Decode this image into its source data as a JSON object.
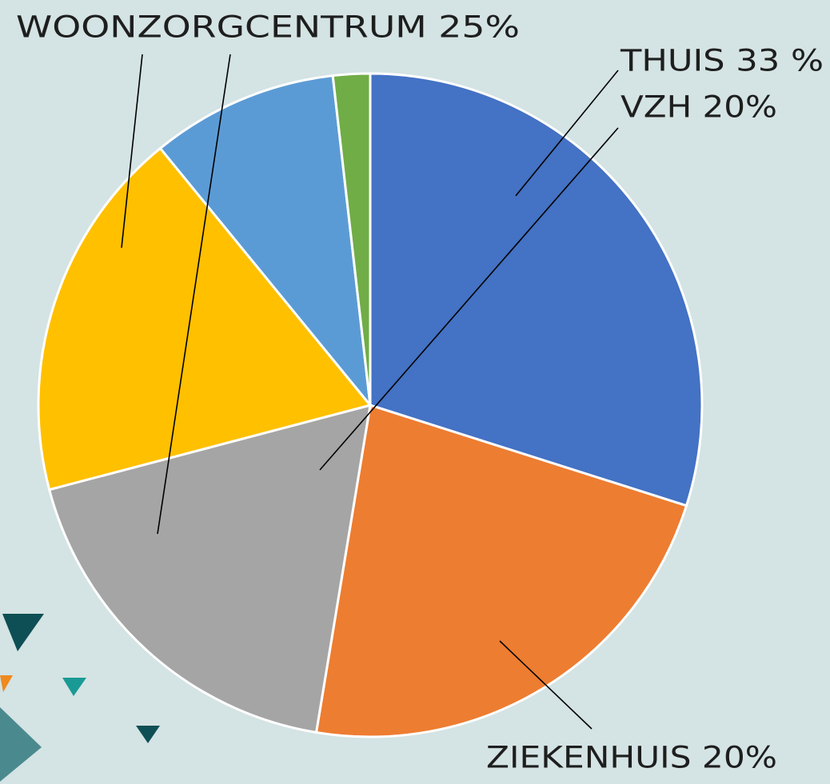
{
  "chart_data": {
    "type": "pie",
    "values": [
      29.9,
      22.7,
      18.3,
      18.2,
      9.1,
      1.8
    ],
    "colors": [
      "#4472c4",
      "#ed7d31",
      "#a5a5a5",
      "#ffc000",
      "#5b9bd5",
      "#70ad47"
    ],
    "annotations": [
      {
        "text": "WOONZORGCENTRUM 25%"
      },
      {
        "text": "THUIS 33 %"
      },
      {
        "text": "VZH 20%"
      },
      {
        "text": "ZIEKENHUIS 20%"
      }
    ]
  }
}
